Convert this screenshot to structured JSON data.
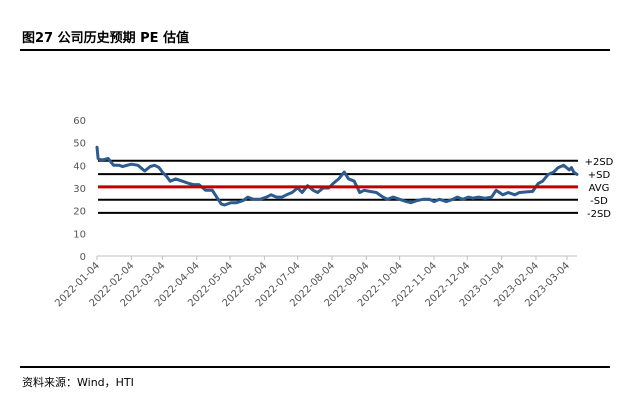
{
  "title": "图27 公司历史预期 PE 估值",
  "source": "资料来源：Wind，HTI",
  "chart_data": {
    "type": "line",
    "title": "",
    "xlabel": "",
    "ylabel": "",
    "ylim": [
      0,
      60
    ],
    "yticks": [
      0,
      10,
      20,
      30,
      40,
      50,
      60
    ],
    "xticks": [
      "2022-01-04",
      "2022-02-04",
      "2022-03-04",
      "2022-04-04",
      "2022-05-04",
      "2022-06-04",
      "2022-07-04",
      "2022-08-04",
      "2022-09-04",
      "2022-10-04",
      "2022-11-04",
      "2022-12-04",
      "2023-01-04",
      "2023-02-04",
      "2023-03-04"
    ],
    "series": [
      {
        "color": "#2b5b8f",
        "x": [
          "2022-01-04",
          "2022-01-05",
          "2022-01-07",
          "2022-01-10",
          "2022-01-14",
          "2022-01-19",
          "2022-01-24",
          "2022-01-27",
          "2022-02-04",
          "2022-02-10",
          "2022-02-16",
          "2022-02-21",
          "2022-02-25",
          "2022-03-01",
          "2022-03-04",
          "2022-03-08",
          "2022-03-11",
          "2022-03-16",
          "2022-03-22",
          "2022-03-28",
          "2022-04-01",
          "2022-04-06",
          "2022-04-12",
          "2022-04-18",
          "2022-04-22",
          "2022-04-26",
          "2022-04-29",
          "2022-05-05",
          "2022-05-10",
          "2022-05-16",
          "2022-05-20",
          "2022-05-25",
          "2022-05-31",
          "2022-06-06",
          "2022-06-10",
          "2022-06-15",
          "2022-06-20",
          "2022-06-24",
          "2022-06-29",
          "2022-07-04",
          "2022-07-08",
          "2022-07-13",
          "2022-07-18",
          "2022-07-22",
          "2022-07-27",
          "2022-08-01",
          "2022-08-05",
          "2022-08-10",
          "2022-08-15",
          "2022-08-19",
          "2022-08-24",
          "2022-08-29",
          "2022-09-02",
          "2022-09-07",
          "2022-09-13",
          "2022-09-19",
          "2022-09-23",
          "2022-09-28",
          "2022-10-10",
          "2022-10-14",
          "2022-10-20",
          "2022-10-25",
          "2022-10-31",
          "2022-11-04",
          "2022-11-09",
          "2022-11-15",
          "2022-11-21",
          "2022-11-25",
          "2022-11-30",
          "2022-12-05",
          "2022-12-09",
          "2022-12-14",
          "2022-12-20",
          "2022-12-26",
          "2022-12-30",
          "2023-01-05",
          "2023-01-10",
          "2023-01-16",
          "2023-01-20",
          "2023-02-01",
          "2023-02-06",
          "2023-02-10",
          "2023-02-15",
          "2023-02-20",
          "2023-02-24",
          "2023-03-01",
          "2023-03-06",
          "2023-03-08",
          "2023-03-10",
          "2023-03-13"
        ],
        "values": [
          48,
          43,
          42.5,
          42.5,
          43,
          40,
          40,
          39.5,
          40.5,
          40,
          37.5,
          39.5,
          40,
          39,
          37,
          35,
          33,
          34,
          33,
          32,
          31.5,
          31.5,
          29,
          29,
          26,
          23,
          22.5,
          23.5,
          23.5,
          24.5,
          26,
          25,
          25,
          26,
          27,
          26,
          26,
          27,
          28,
          30,
          28,
          31,
          29,
          28,
          30,
          30,
          32,
          34,
          37,
          34,
          33,
          28,
          29,
          28.5,
          28,
          26,
          25,
          26,
          24,
          23.5,
          24.5,
          25,
          25,
          24,
          25,
          24,
          25,
          26,
          25,
          26,
          25.5,
          26,
          25.5,
          26,
          29,
          27,
          28,
          27,
          28,
          28.5,
          32,
          33,
          36,
          37,
          39,
          40,
          38,
          39,
          37,
          36
        ]
      }
    ],
    "reference_lines": [
      {
        "label": "+2SD",
        "value": 42.0,
        "color": "#000000"
      },
      {
        "label": "+SD",
        "value": 36.1,
        "color": "#000000"
      },
      {
        "label": "AVG",
        "value": 30.5,
        "color": "#c00000"
      },
      {
        "label": "-SD",
        "value": 24.8,
        "color": "#000000"
      },
      {
        "label": "-2SD",
        "value": 19.0,
        "color": "#000000"
      }
    ]
  }
}
